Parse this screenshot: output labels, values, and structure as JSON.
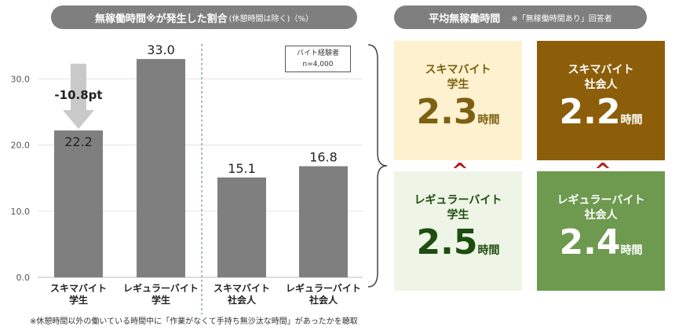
{
  "header_left": {
    "main": "無稼働時間※が発生した割合",
    "sub": "(休憩時間は除く)（%）"
  },
  "header_right": {
    "main": "平均無稼働時間",
    "sub": "※「無稼働時間あり」回答者"
  },
  "note_box": {
    "line1": "バイト経験者",
    "line2": "n=4,000"
  },
  "diff_label": "-10.8pt",
  "footnote": "※休憩時間以外の働いている時間中に「作業がなくて手持ち無沙汰な時間」があったかを聴取",
  "chart_data": {
    "type": "bar",
    "categories": [
      "スキマバイト\n学生",
      "レギュラーバイト\n学生",
      "スキマバイト\n社会人",
      "レギュラーバイト\n社会人"
    ],
    "values": [
      22.2,
      33.0,
      15.1,
      16.8
    ],
    "value_labels": [
      "22.2",
      "33.0",
      "15.1",
      "16.8"
    ],
    "yticks": [
      "0.0",
      "10.0",
      "20.0",
      "30.0"
    ],
    "ylim": [
      0,
      35
    ],
    "bar_color": "#7f7f7f",
    "arrow_color": "#c9c9c9"
  },
  "cards": {
    "sukima_student": {
      "title": "スキマバイト\n学生",
      "value": "2.3",
      "unit": "時間"
    },
    "sukima_worker": {
      "title": "スキマバイト\n社会人",
      "value": "2.2",
      "unit": "時間"
    },
    "regular_student": {
      "title": "レギュラーバイト\n学生",
      "value": "2.5",
      "unit": "時間"
    },
    "regular_worker": {
      "title": "レギュラーバイト\n社会人",
      "value": "2.4",
      "unit": "時間"
    }
  },
  "comparison_symbol": "^"
}
